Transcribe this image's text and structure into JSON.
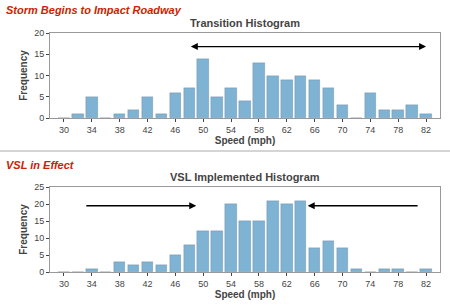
{
  "chart_data": [
    {
      "type": "bar",
      "subtitle": "Storm Begins to Impact Roadway",
      "title": "Transition Histogram",
      "xlabel": "Speed (mph)",
      "ylabel": "Frequency",
      "x": [
        30,
        32,
        34,
        36,
        38,
        40,
        42,
        44,
        46,
        48,
        50,
        52,
        54,
        56,
        58,
        60,
        62,
        64,
        66,
        68,
        70,
        72,
        74,
        76,
        78,
        80,
        82
      ],
      "values": [
        0,
        1,
        5,
        0,
        1,
        2,
        5,
        1,
        6,
        7,
        14,
        5,
        7,
        4,
        13,
        10,
        9,
        10,
        9,
        7,
        3,
        0,
        6,
        2,
        2,
        3,
        1
      ],
      "color": "#7EB3D4",
      "xlim": [
        28,
        84
      ],
      "xticks": [
        30,
        34,
        38,
        42,
        46,
        50,
        54,
        58,
        62,
        66,
        70,
        74,
        78,
        82
      ],
      "ylim": [
        0,
        20
      ],
      "yticks": [
        0,
        5,
        10,
        15,
        20
      ],
      "grid": false,
      "annotations": [
        {
          "x": 82,
          "y": 16.8,
          "ax": 48,
          "ay": 16.8,
          "arrow": "both"
        }
      ]
    },
    {
      "type": "bar",
      "subtitle": "VSL in Effect",
      "title": "VSL Implemented Histogram",
      "xlabel": "Speed (mph)",
      "ylabel": "Frequency",
      "x": [
        30,
        32,
        34,
        36,
        38,
        40,
        42,
        44,
        46,
        48,
        50,
        52,
        54,
        56,
        58,
        60,
        62,
        64,
        66,
        68,
        70,
        72,
        74,
        76,
        78,
        80,
        82
      ],
      "values": [
        0,
        0,
        1,
        0,
        3,
        2,
        3,
        2,
        5,
        8,
        12,
        12,
        20,
        15,
        15,
        21,
        20,
        21,
        7,
        9,
        7,
        1,
        0,
        1,
        1,
        0,
        1
      ],
      "color": "#7EB3D4",
      "xlim": [
        28,
        84
      ],
      "xticks": [
        30,
        34,
        38,
        42,
        46,
        50,
        54,
        58,
        62,
        66,
        70,
        74,
        78,
        82
      ],
      "ylim": [
        0,
        25
      ],
      "yticks": [
        0,
        5,
        10,
        15,
        20,
        25
      ],
      "grid": false,
      "annotations": [
        {
          "x": 49,
          "y": 19.5,
          "ax": 33,
          "ay": 19.5,
          "arrow": "end"
        },
        {
          "x": 65,
          "y": 19.5,
          "ax": 81,
          "ay": 19.5,
          "arrow": "end"
        }
      ]
    }
  ]
}
